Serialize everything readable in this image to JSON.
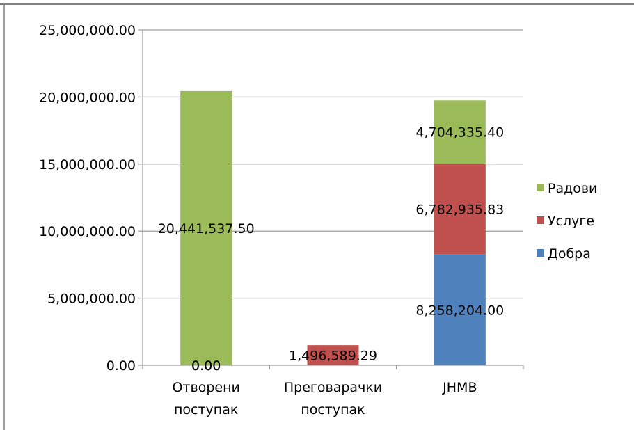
{
  "chart_data": {
    "type": "bar",
    "stacked": true,
    "title": "",
    "xlabel": "",
    "ylabel": "",
    "categories": [
      "Отворени поступак",
      "Преговарачки поступак",
      "ЈНМВ"
    ],
    "category_lines": [
      [
        "Отворени",
        "поступак"
      ],
      [
        "Преговарачки",
        "поступак"
      ],
      [
        "ЈНМВ"
      ]
    ],
    "ylim": [
      0,
      25000000
    ],
    "yticks": [
      0,
      5000000,
      10000000,
      15000000,
      20000000,
      25000000
    ],
    "ytick_labels": [
      "0.00",
      "5,000,000.00",
      "10,000,000.00",
      "15,000,000.00",
      "20,000,000.00",
      "25,000,000.00"
    ],
    "grid": true,
    "legend_position": "right",
    "series": [
      {
        "name": "Добра",
        "color": "#4f81bd",
        "values": [
          0,
          0,
          8258204.0
        ],
        "labels": [
          "0.00",
          "",
          "8,258,204.00"
        ]
      },
      {
        "name": "Услуге",
        "color": "#c0504d",
        "values": [
          0,
          1496589.29,
          6782935.83
        ],
        "labels": [
          "0.00",
          "1,496,589.29",
          "6,782,935.83"
        ]
      },
      {
        "name": "Радови",
        "color": "#9bbb59",
        "values": [
          20441537.5,
          0,
          4704335.4
        ],
        "labels": [
          "20,441,537.50",
          "",
          "4,704,335.40"
        ]
      }
    ]
  }
}
